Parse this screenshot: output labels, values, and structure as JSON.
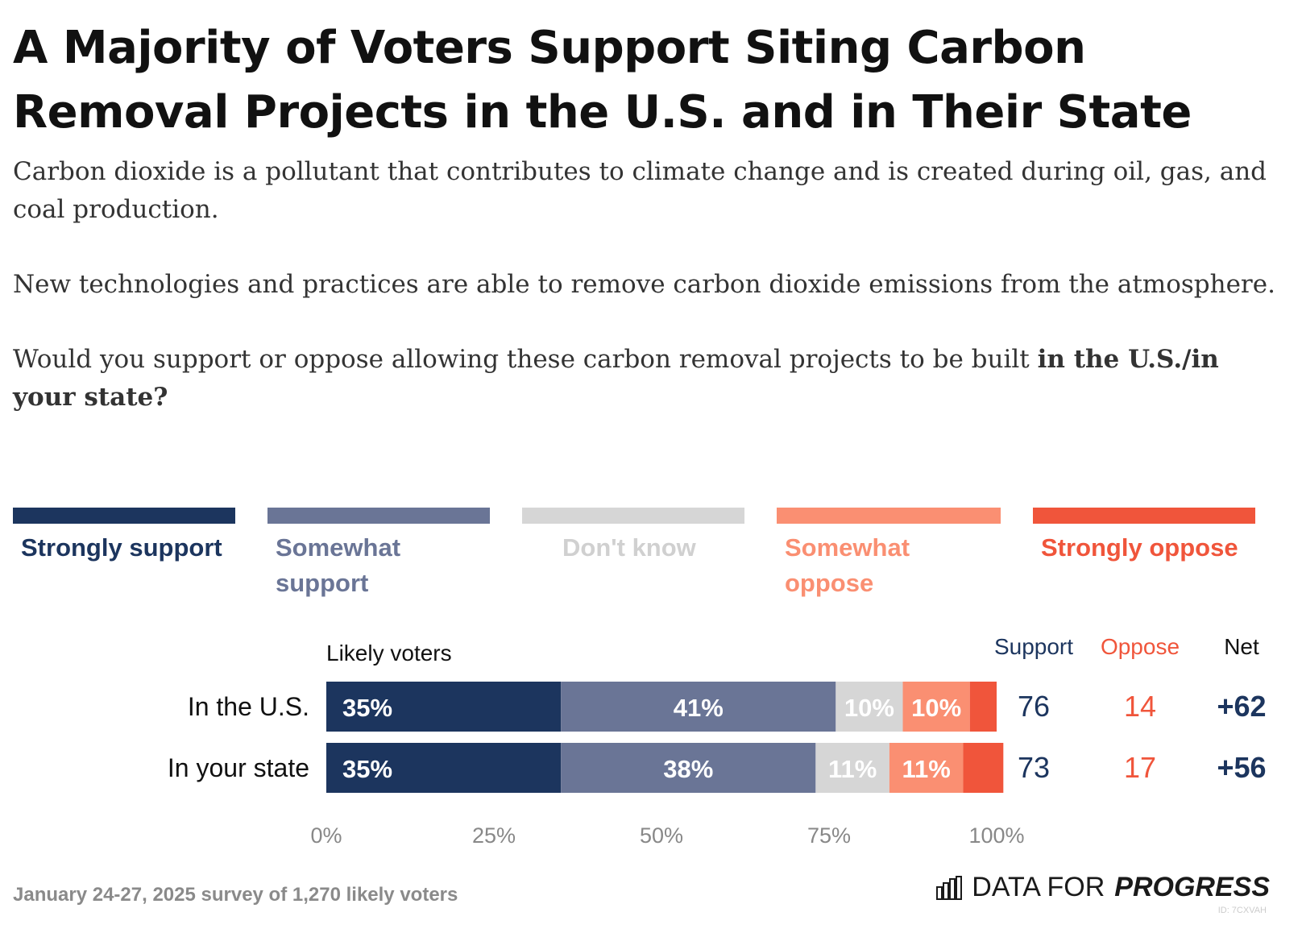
{
  "title": "A Majority of Voters Support Siting Carbon Removal Projects in the U.S. and in Their State",
  "intro": {
    "p1": "Carbon dioxide is a pollutant that contributes to climate change and is created during oil, gas, and coal production.",
    "p2": "New technologies and practices are able to remove carbon dioxide emissions from the atmosphere.",
    "p3_plain": "Would you support or oppose allowing these carbon removal projects to be built ",
    "p3_bold": "in the U.S./in your state?"
  },
  "colors": {
    "strongly_support": "#1c355e",
    "somewhat_support": "#6a7596",
    "dont_know": "#d6d6d6",
    "somewhat_oppose": "#fa8f72",
    "strongly_oppose": "#f0553b",
    "support_text": "#1c355e",
    "oppose_text": "#f0553b",
    "axis_text": "#888888"
  },
  "legend": [
    {
      "label": "Strongly support",
      "color": "#1c355e",
      "text_color": "#1c355e"
    },
    {
      "label": "Somewhat support",
      "color": "#6a7596",
      "text_color": "#6a7596"
    },
    {
      "label": "Don't know",
      "color": "#d6d6d6",
      "text_color": "#d0d0d0"
    },
    {
      "label": "Somewhat oppose",
      "color": "#fa8f72",
      "text_color": "#fa8f72"
    },
    {
      "label": "Strongly oppose",
      "color": "#f0553b",
      "text_color": "#f0553b"
    }
  ],
  "chart_data": {
    "type": "bar",
    "orientation": "horizontal",
    "stacked": true,
    "group_label": "Likely voters",
    "categories": [
      "In the U.S.",
      "In your state"
    ],
    "series": [
      {
        "name": "Strongly support",
        "values": [
          35,
          35
        ],
        "labels": [
          "35%",
          "35%"
        ]
      },
      {
        "name": "Somewhat support",
        "values": [
          41,
          38
        ],
        "labels": [
          "41%",
          "38%"
        ]
      },
      {
        "name": "Don't know",
        "values": [
          10,
          11
        ],
        "labels": [
          "10%",
          "11%"
        ]
      },
      {
        "name": "Somewhat oppose",
        "values": [
          10,
          11
        ],
        "labels": [
          "10%",
          "11%"
        ]
      },
      {
        "name": "Strongly oppose",
        "values": [
          4,
          6
        ],
        "labels": [
          "",
          ""
        ]
      }
    ],
    "summary_headers": {
      "support": "Support",
      "oppose": "Oppose",
      "net": "Net"
    },
    "summary": [
      {
        "support": "76",
        "oppose": "14",
        "net": "+62"
      },
      {
        "support": "73",
        "oppose": "17",
        "net": "+56"
      }
    ],
    "x_ticks": [
      "0%",
      "25%",
      "50%",
      "75%",
      "100%"
    ],
    "xlim": [
      0,
      100
    ]
  },
  "footer": {
    "note": "January 24-27, 2025 survey of 1,270 likely voters",
    "brand_light": "DATA FOR",
    "brand_bold": "PROGRESS",
    "id": "ID: 7CXVAH"
  }
}
